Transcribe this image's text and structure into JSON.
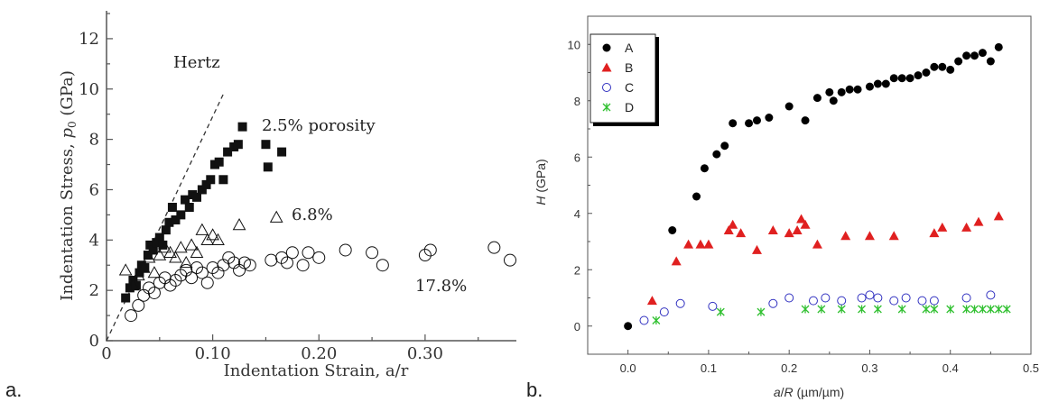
{
  "panels": {
    "a": {
      "caption": "a."
    },
    "b": {
      "caption": "b."
    }
  },
  "chart_data": [
    {
      "type": "scatter",
      "title": "",
      "xlabel": "Indentation Strain, a/r",
      "ylabel": "Indentation Stress, p0 (GPa)",
      "xlim": [
        0,
        0.38
      ],
      "ylim": [
        0,
        13
      ],
      "xticks": [
        "0",
        "0.10",
        "0.20",
        "0.30"
      ],
      "xtick_values": [
        0,
        0.1,
        0.2,
        0.3
      ],
      "yticks": [
        "0",
        "2",
        "4",
        "6",
        "8",
        "10",
        "12"
      ],
      "ytick_values": [
        0,
        2,
        4,
        6,
        8,
        10,
        12
      ],
      "grid": false,
      "reference_line": {
        "label": "Hertz",
        "x": [
          0,
          0.11
        ],
        "y": [
          0,
          9.8
        ]
      },
      "annotations": [
        "2.5% porosity",
        "6.8%",
        "17.8%"
      ],
      "series": [
        {
          "name": "2.5% porosity",
          "marker": "filled-square",
          "color": "#111111",
          "x": [
            0.018,
            0.022,
            0.025,
            0.028,
            0.031,
            0.033,
            0.036,
            0.039,
            0.041,
            0.044,
            0.047,
            0.05,
            0.053,
            0.056,
            0.059,
            0.062,
            0.065,
            0.07,
            0.074,
            0.078,
            0.081,
            0.085,
            0.09,
            0.094,
            0.098,
            0.102,
            0.106,
            0.11,
            0.114,
            0.12,
            0.124,
            0.128,
            0.15,
            0.152,
            0.165
          ],
          "y": [
            1.7,
            2.1,
            2.4,
            2.2,
            2.7,
            3.0,
            2.9,
            3.4,
            3.8,
            3.6,
            3.9,
            4.1,
            3.8,
            4.4,
            4.7,
            5.3,
            4.8,
            5.0,
            5.6,
            5.3,
            5.8,
            5.7,
            6.0,
            6.2,
            6.4,
            7.0,
            7.1,
            6.4,
            7.5,
            7.7,
            7.8,
            8.5,
            7.8,
            6.9,
            7.5
          ]
        },
        {
          "name": "6.8%",
          "marker": "open-triangle",
          "color": "#111111",
          "x": [
            0.018,
            0.025,
            0.03,
            0.035,
            0.04,
            0.045,
            0.05,
            0.055,
            0.06,
            0.065,
            0.07,
            0.075,
            0.08,
            0.085,
            0.09,
            0.095,
            0.1,
            0.105,
            0.125,
            0.16
          ],
          "y": [
            2.8,
            2.2,
            2.6,
            2.9,
            3.3,
            2.7,
            3.4,
            3.7,
            3.5,
            3.3,
            3.7,
            3.1,
            3.8,
            3.5,
            4.4,
            4.0,
            4.2,
            4.0,
            4.6,
            4.9
          ]
        },
        {
          "name": "17.8%",
          "marker": "open-circle",
          "color": "#111111",
          "x": [
            0.023,
            0.03,
            0.035,
            0.04,
            0.045,
            0.05,
            0.055,
            0.06,
            0.065,
            0.07,
            0.075,
            0.08,
            0.085,
            0.09,
            0.095,
            0.1,
            0.105,
            0.11,
            0.115,
            0.12,
            0.125,
            0.13,
            0.135,
            0.155,
            0.165,
            0.17,
            0.175,
            0.185,
            0.19,
            0.2,
            0.225,
            0.25,
            0.26,
            0.3,
            0.305,
            0.365,
            0.38
          ],
          "y": [
            1.0,
            1.4,
            1.8,
            2.1,
            1.9,
            2.3,
            2.5,
            2.2,
            2.4,
            2.6,
            2.8,
            2.5,
            2.9,
            2.7,
            2.3,
            2.9,
            2.7,
            3.0,
            3.3,
            3.1,
            2.8,
            3.1,
            3.0,
            3.2,
            3.3,
            3.1,
            3.5,
            3.0,
            3.5,
            3.3,
            3.6,
            3.5,
            3.0,
            3.4,
            3.6,
            3.7,
            3.2
          ]
        }
      ]
    },
    {
      "type": "scatter",
      "title": "",
      "xlabel": "a/R (µm/µm)",
      "ylabel": "H (GPa)",
      "xlim": [
        -0.05,
        0.5
      ],
      "ylim": [
        -1,
        11
      ],
      "xticks": [
        "0.0",
        "0.1",
        "0.2",
        "0.3",
        "0.4",
        "0.5"
      ],
      "xtick_values": [
        0.0,
        0.1,
        0.2,
        0.3,
        0.4,
        0.5
      ],
      "yticks": [
        "0",
        "2",
        "4",
        "6",
        "8",
        "10"
      ],
      "ytick_values": [
        0,
        2,
        4,
        6,
        8,
        10
      ],
      "grid": false,
      "legend": "top-left",
      "series": [
        {
          "name": "A",
          "marker": "filled-circle",
          "color": "#000000",
          "x": [
            0.0,
            0.055,
            0.085,
            0.095,
            0.11,
            0.12,
            0.13,
            0.15,
            0.16,
            0.175,
            0.2,
            0.22,
            0.235,
            0.25,
            0.255,
            0.265,
            0.275,
            0.285,
            0.3,
            0.31,
            0.32,
            0.33,
            0.34,
            0.35,
            0.36,
            0.37,
            0.38,
            0.39,
            0.4,
            0.41,
            0.42,
            0.43,
            0.44,
            0.45,
            0.46
          ],
          "y": [
            0.0,
            3.4,
            4.6,
            5.6,
            6.1,
            6.4,
            7.2,
            7.2,
            7.3,
            7.4,
            7.8,
            7.3,
            8.1,
            8.3,
            8.0,
            8.3,
            8.4,
            8.4,
            8.5,
            8.6,
            8.6,
            8.8,
            8.8,
            8.8,
            8.9,
            9.0,
            9.2,
            9.2,
            9.1,
            9.4,
            9.6,
            9.6,
            9.7,
            9.4,
            9.9
          ]
        },
        {
          "name": "B",
          "marker": "filled-triangle",
          "color": "#e02020",
          "x": [
            0.03,
            0.06,
            0.075,
            0.09,
            0.1,
            0.125,
            0.13,
            0.14,
            0.16,
            0.18,
            0.2,
            0.21,
            0.215,
            0.22,
            0.235,
            0.27,
            0.3,
            0.33,
            0.38,
            0.39,
            0.42,
            0.435,
            0.46
          ],
          "y": [
            0.9,
            2.3,
            2.9,
            2.9,
            2.9,
            3.4,
            3.6,
            3.3,
            2.7,
            3.4,
            3.3,
            3.4,
            3.8,
            3.6,
            2.9,
            3.2,
            3.2,
            3.2,
            3.3,
            3.5,
            3.5,
            3.7,
            3.9
          ]
        },
        {
          "name": "C",
          "marker": "open-circle",
          "color": "#3030c0",
          "x": [
            0.02,
            0.045,
            0.065,
            0.105,
            0.18,
            0.2,
            0.23,
            0.245,
            0.265,
            0.29,
            0.3,
            0.31,
            0.33,
            0.345,
            0.365,
            0.38,
            0.42,
            0.45
          ],
          "y": [
            0.2,
            0.5,
            0.8,
            0.7,
            0.8,
            1.0,
            0.9,
            1.0,
            0.9,
            1.0,
            1.1,
            1.0,
            0.9,
            1.0,
            0.9,
            0.9,
            1.0,
            1.1
          ]
        },
        {
          "name": "D",
          "marker": "x-star",
          "color": "#30c030",
          "x": [
            0.035,
            0.115,
            0.165,
            0.22,
            0.24,
            0.265,
            0.29,
            0.31,
            0.34,
            0.37,
            0.38,
            0.4,
            0.42,
            0.43,
            0.44,
            0.45,
            0.46,
            0.47
          ],
          "y": [
            0.2,
            0.5,
            0.5,
            0.6,
            0.6,
            0.6,
            0.6,
            0.6,
            0.6,
            0.6,
            0.6,
            0.6,
            0.6,
            0.6,
            0.6,
            0.6,
            0.6,
            0.6
          ]
        }
      ]
    }
  ]
}
